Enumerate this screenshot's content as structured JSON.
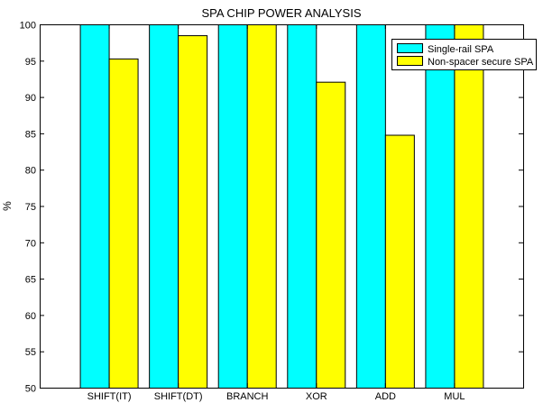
{
  "chart_data": {
    "type": "bar",
    "title": "SPA CHIP POWER ANALYSIS",
    "xlabel": "",
    "ylabel": "%",
    "ylim": [
      50,
      100
    ],
    "yticks": [
      50,
      55,
      60,
      65,
      70,
      75,
      80,
      85,
      90,
      95,
      100
    ],
    "categories": [
      "SHIFT(IT)",
      "SHIFT(DT)",
      "BRANCH",
      "XOR",
      "ADD",
      "MUL"
    ],
    "series": [
      {
        "name": "Single-rail SPA",
        "color": "#00ffff",
        "values": [
          100,
          100,
          100,
          100,
          100,
          100
        ]
      },
      {
        "name": "Non-spacer secure SPA",
        "color": "#ffff00",
        "values": [
          95.3,
          98.5,
          100,
          92.1,
          84.8,
          100
        ]
      }
    ],
    "grid": false,
    "legend": "top-right"
  }
}
